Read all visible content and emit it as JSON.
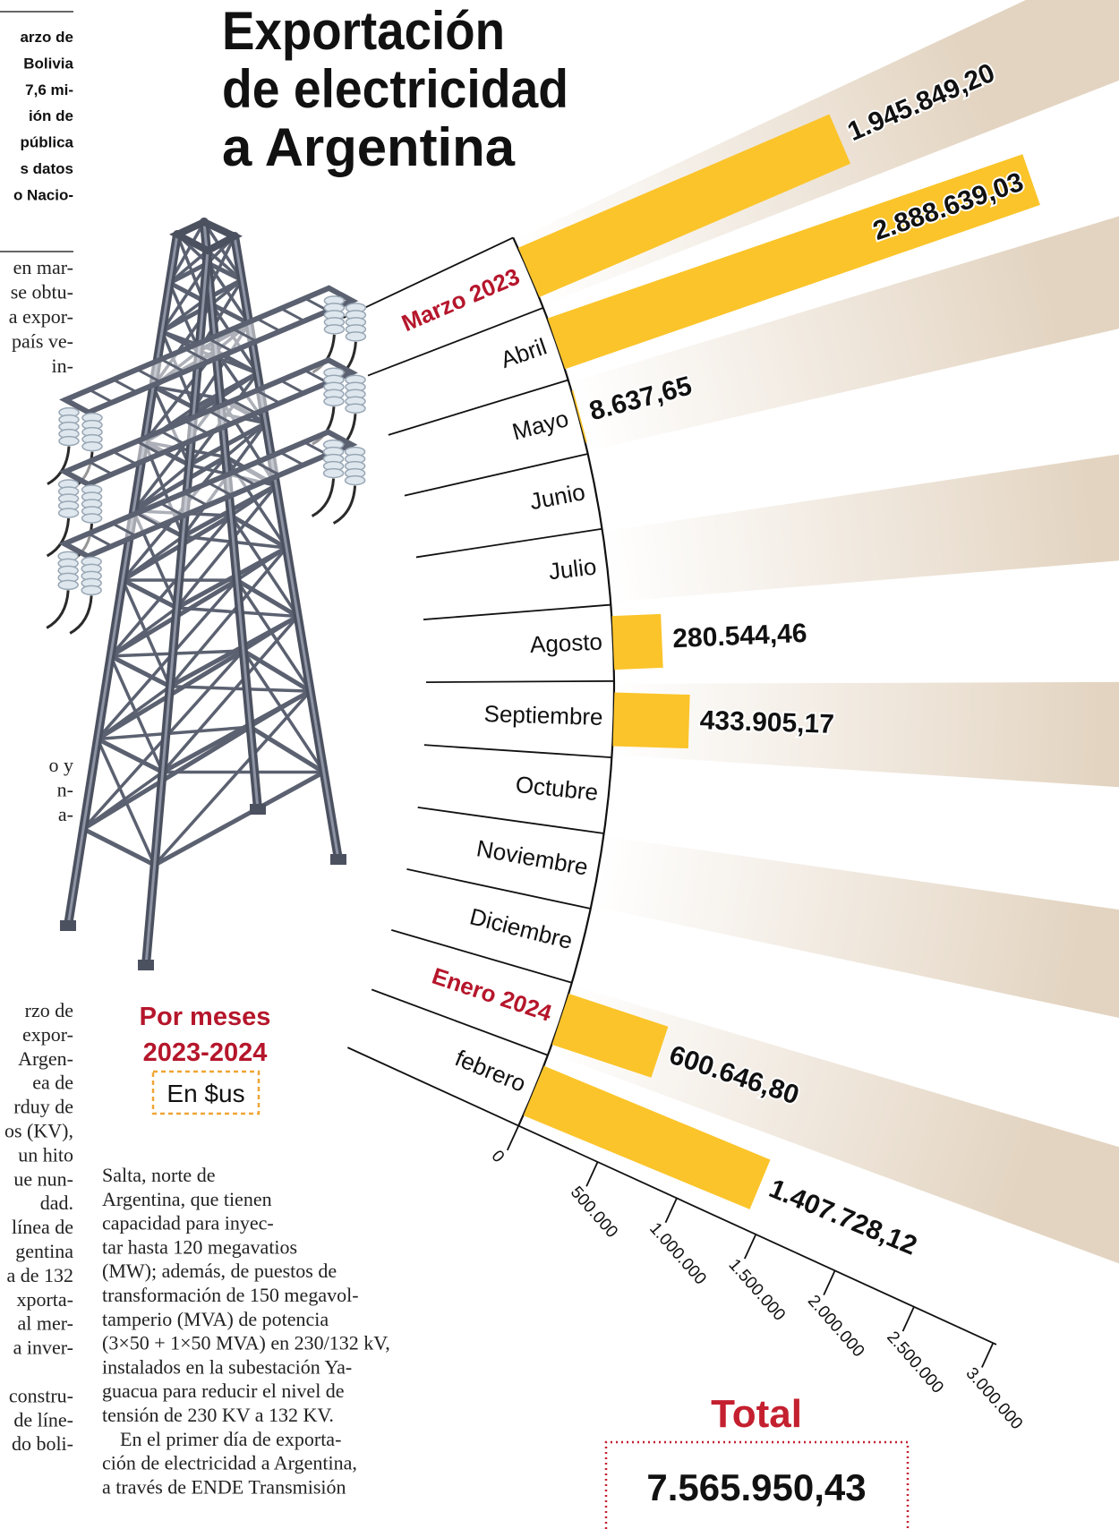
{
  "sidebar": {
    "lead_lines": [
      "arzo de",
      "Bolivia",
      "7,6 mi-",
      "ión de",
      "pública",
      "s datos",
      "o Nacio-"
    ],
    "body_lines": [
      "en mar-",
      "se obtu-",
      "a expor-",
      "país ve-",
      "in-"
    ],
    "fragment_lines": [
      "o y",
      "n-",
      "a-"
    ]
  },
  "article": {
    "left_lines": [
      "rzo de",
      "expor-",
      "Argen-",
      "ea de",
      "rduy de",
      "os (KV),",
      "un hito",
      "ue nun-",
      "dad.",
      "línea de",
      "gentina",
      "a de 132",
      "xporta-",
      "al mer-",
      "a inver-",
      "constru-",
      "de líne-",
      "do boli-"
    ],
    "column_lines": [
      "Salta, norte de",
      "Argentina, que tienen",
      "capacidad para inyec-",
      "tar hasta 120 megavatios",
      "(MW); además, de puestos de",
      "transformación de 150 megavol-",
      "tamperio (MVA) de potencia",
      "(3×50 + 1×50 MVA) en 230/132 kV,",
      "instalados en la subestación Ya-",
      "guacua para reducir el nivel de",
      "tensión de 230 KV a 132 KV.",
      "En el primer día de exporta-",
      "ción de electricidad a Argentina,",
      "a través de ENDE Transmisión"
    ]
  },
  "chart_data": {
    "type": "radial_bar",
    "title_lines": [
      "Exportación",
      "de electricidad",
      "a Argentina"
    ],
    "subtitle_lines": [
      "Por meses",
      "2023-2024"
    ],
    "unit": "En $us",
    "categories": [
      "Marzo 2023",
      "Abril",
      "Mayo",
      "Junio",
      "Julio",
      "Agosto",
      "Septiembre",
      "Octubre",
      "Noviembre",
      "Diciembre",
      "Enero 2024",
      "febrero"
    ],
    "values": [
      1945849.2,
      2888639.03,
      8637.65,
      0,
      0,
      280544.46,
      433905.17,
      0,
      0,
      0,
      600646.8,
      1407728.12
    ],
    "value_labels": [
      "1.945.849,20",
      "2.888.639,03",
      "8.637,65",
      null,
      null,
      "280.544,46",
      "433.905,17",
      null,
      null,
      null,
      "600.646,80",
      "1.407.728,12"
    ],
    "color": "#fbc42a",
    "label_color": "#111111",
    "category_label_colors": [
      "#b5162b",
      "#111111",
      "#111111",
      "#111111",
      "#111111",
      "#111111",
      "#111111",
      "#111111",
      "#111111",
      "#111111",
      "#b5162b",
      "#111111"
    ],
    "background_ray_color": "#e3d4c1",
    "xlim": [
      0,
      3000000
    ],
    "xticks": [
      0,
      {
        "value": 500000,
        "label": "500.000"
      },
      {
        "value": 1000000,
        "label": "1.000.000"
      },
      {
        "value": 1500000,
        "label": "1.500.000"
      },
      {
        "value": 2000000,
        "label": "2.000.000"
      },
      {
        "value": 2500000,
        "label": "2.500.000"
      },
      {
        "value": 3000000,
        "label": "3.000.000"
      }
    ],
    "total_label": "Total",
    "total_value": "7.565.950,43"
  }
}
